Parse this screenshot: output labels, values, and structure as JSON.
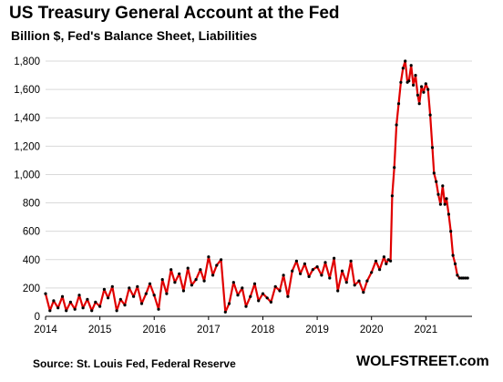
{
  "title": "US Treasury General Account at the Fed",
  "subtitle": "Billion $, Fed's Balance Sheet, Liabilities",
  "source": "Source: St. Louis Fed, Federal Reserve",
  "brand": "WOLFSTREET.com",
  "chart_data": {
    "type": "line",
    "ylim": [
      0,
      1800
    ],
    "xlim": [
      2014.0,
      2021.85
    ],
    "grid": "horizontal",
    "legend": "none",
    "y_ticks": [
      0,
      200,
      400,
      600,
      800,
      1000,
      1200,
      1400,
      1600,
      1800
    ],
    "y_tick_labels": [
      "0",
      "200",
      "400",
      "600",
      "800",
      "1,000",
      "1,200",
      "1,400",
      "1,600",
      "1,800"
    ],
    "x_ticks": [
      2014,
      2015,
      2016,
      2017,
      2018,
      2019,
      2020,
      2021
    ],
    "x_tick_labels": [
      "2014",
      "2015",
      "2016",
      "2017",
      "2018",
      "2019",
      "2020",
      "2021"
    ],
    "colors": {
      "line": "#e00000",
      "marker": "#000000",
      "grid": "#d9d9d9"
    },
    "series": [
      {
        "x": [
          2014.0,
          2014.08,
          2014.15,
          2014.23,
          2014.31,
          2014.38,
          2014.46,
          2014.54,
          2014.62,
          2014.69,
          2014.77,
          2014.85,
          2014.92,
          2015.0,
          2015.08,
          2015.15,
          2015.23,
          2015.31,
          2015.38,
          2015.46,
          2015.54,
          2015.62,
          2015.69,
          2015.77,
          2015.85,
          2015.92,
          2016.0,
          2016.08,
          2016.15,
          2016.23,
          2016.31,
          2016.38,
          2016.46,
          2016.54,
          2016.62,
          2016.69,
          2016.77,
          2016.85,
          2016.92,
          2017.0,
          2017.08,
          2017.15,
          2017.23,
          2017.31,
          2017.38,
          2017.46,
          2017.54,
          2017.62,
          2017.69,
          2017.77,
          2017.85,
          2017.92,
          2018.0,
          2018.08,
          2018.15,
          2018.23,
          2018.31,
          2018.38,
          2018.46,
          2018.54,
          2018.62,
          2018.69,
          2018.77,
          2018.85,
          2018.92,
          2019.0,
          2019.08,
          2019.15,
          2019.23,
          2019.31,
          2019.38,
          2019.46,
          2019.54,
          2019.62,
          2019.69,
          2019.77,
          2019.85,
          2019.92,
          2020.0,
          2020.08,
          2020.15,
          2020.23,
          2020.27,
          2020.31,
          2020.35,
          2020.38,
          2020.42,
          2020.46,
          2020.5,
          2020.54,
          2020.58,
          2020.62,
          2020.66,
          2020.69,
          2020.73,
          2020.77,
          2020.81,
          2020.85,
          2020.88,
          2020.92,
          2020.96,
          2021.0,
          2021.04,
          2021.08,
          2021.12,
          2021.15,
          2021.19,
          2021.23,
          2021.27,
          2021.31,
          2021.35,
          2021.38,
          2021.42,
          2021.46,
          2021.5,
          2021.54,
          2021.58,
          2021.62,
          2021.66,
          2021.69,
          2021.73,
          2021.77
        ],
        "values": [
          160,
          40,
          110,
          60,
          140,
          40,
          100,
          50,
          150,
          60,
          120,
          40,
          100,
          70,
          190,
          130,
          210,
          40,
          120,
          80,
          200,
          140,
          210,
          90,
          160,
          230,
          150,
          50,
          260,
          160,
          330,
          240,
          300,
          180,
          340,
          220,
          260,
          330,
          250,
          420,
          290,
          360,
          400,
          30,
          90,
          240,
          150,
          200,
          70,
          140,
          230,
          110,
          160,
          130,
          100,
          210,
          180,
          290,
          140,
          320,
          390,
          300,
          370,
          280,
          330,
          350,
          290,
          380,
          270,
          410,
          180,
          320,
          240,
          390,
          220,
          250,
          170,
          250,
          310,
          390,
          330,
          420,
          370,
          400,
          390,
          850,
          1050,
          1350,
          1500,
          1650,
          1750,
          1800,
          1650,
          1660,
          1770,
          1630,
          1700,
          1560,
          1500,
          1620,
          1580,
          1640,
          1600,
          1420,
          1190,
          1010,
          950,
          860,
          790,
          920,
          790,
          830,
          720,
          600,
          430,
          370,
          290,
          270,
          270,
          270,
          270,
          270
        ]
      }
    ]
  }
}
